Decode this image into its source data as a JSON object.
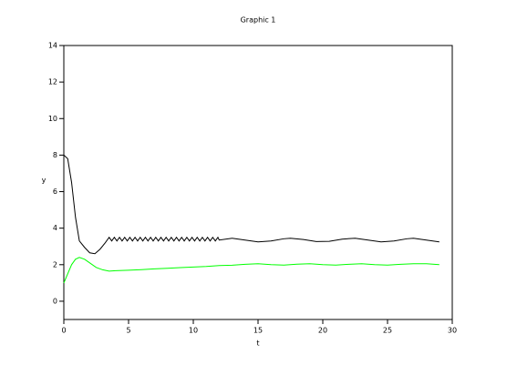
{
  "chart_data": {
    "type": "line",
    "title": "Graphic 1",
    "x_label": "t",
    "y_label": "y",
    "xlim": [
      0,
      30
    ],
    "xticks": [
      0,
      5,
      10,
      15,
      20,
      25,
      30
    ],
    "ylim": [
      -1,
      14
    ],
    "yticks": [
      0,
      2,
      4,
      6,
      8,
      10,
      12,
      14
    ],
    "series": [
      {
        "color": "#000000",
        "x": [
          0,
          0.3,
          0.6,
          0.9,
          1.2,
          1.6,
          2.0,
          2.4,
          2.8,
          3.2,
          3.5,
          3.7,
          3.9,
          4.1,
          4.3,
          4.5,
          4.7,
          4.9,
          5.1,
          5.3,
          5.5,
          5.7,
          5.9,
          6.1,
          6.3,
          6.5,
          6.7,
          6.9,
          7.1,
          7.3,
          7.5,
          7.7,
          7.9,
          8.1,
          8.3,
          8.5,
          8.7,
          8.9,
          9.1,
          9.3,
          9.5,
          9.7,
          9.9,
          10.1,
          10.3,
          10.5,
          10.7,
          10.9,
          11.1,
          11.3,
          11.5,
          11.7,
          11.9,
          12,
          13,
          14,
          15,
          16,
          17,
          17.5,
          18.5,
          19.5,
          20.5,
          21.5,
          22.5,
          23.5,
          24.5,
          25.5,
          26.5,
          27,
          28,
          29
        ],
        "values": [
          8.0,
          7.8,
          6.5,
          4.6,
          3.3,
          2.95,
          2.65,
          2.6,
          2.85,
          3.2,
          3.5,
          3.3,
          3.5,
          3.3,
          3.5,
          3.3,
          3.5,
          3.3,
          3.5,
          3.3,
          3.5,
          3.3,
          3.5,
          3.3,
          3.5,
          3.3,
          3.5,
          3.3,
          3.5,
          3.3,
          3.5,
          3.3,
          3.5,
          3.3,
          3.5,
          3.3,
          3.5,
          3.3,
          3.5,
          3.3,
          3.5,
          3.3,
          3.5,
          3.3,
          3.5,
          3.3,
          3.5,
          3.3,
          3.5,
          3.3,
          3.5,
          3.3,
          3.5,
          3.35,
          3.45,
          3.35,
          3.25,
          3.3,
          3.42,
          3.45,
          3.38,
          3.27,
          3.28,
          3.4,
          3.45,
          3.35,
          3.25,
          3.3,
          3.42,
          3.45,
          3.35,
          3.25
        ]
      },
      {
        "color": "#00ff00",
        "x": [
          0,
          0.3,
          0.6,
          0.9,
          1.2,
          1.6,
          2.0,
          2.5,
          3.0,
          3.5,
          4,
          5,
          6,
          7,
          8,
          9,
          10,
          11,
          12,
          13,
          14,
          15,
          16,
          17,
          18,
          19,
          20,
          21,
          22,
          23,
          24,
          25,
          26,
          27,
          28,
          29
        ],
        "values": [
          1.0,
          1.5,
          2.0,
          2.3,
          2.4,
          2.3,
          2.1,
          1.85,
          1.72,
          1.65,
          1.67,
          1.7,
          1.73,
          1.77,
          1.8,
          1.84,
          1.87,
          1.9,
          1.95,
          1.97,
          2.02,
          2.05,
          2.0,
          1.98,
          2.03,
          2.05,
          2.0,
          1.98,
          2.02,
          2.05,
          2.0,
          1.98,
          2.02,
          2.05,
          2.05,
          2.0
        ]
      }
    ]
  }
}
